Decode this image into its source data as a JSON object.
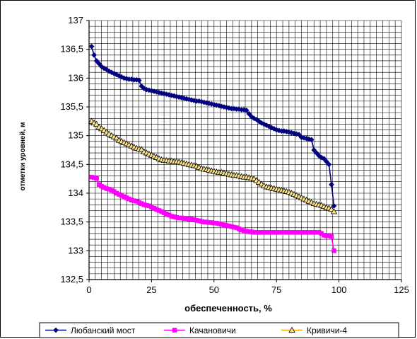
{
  "chart_data": {
    "type": "line",
    "title": "",
    "xlabel": "обеспеченность, %",
    "ylabel": "отметки уровней, м",
    "xlim": [
      0,
      125
    ],
    "ylim": [
      132.5,
      137
    ],
    "x_ticks": [
      "0",
      "25",
      "50",
      "75",
      "100",
      "125"
    ],
    "y_ticks": [
      "132,5",
      "133",
      "133,5",
      "134",
      "134,5",
      "135",
      "135,5",
      "136",
      "136,5",
      "137"
    ],
    "grid": true,
    "legend_position": "bottom",
    "series": [
      {
        "name": "Любанский мост",
        "color": "#000080",
        "marker": "diamond",
        "x": [
          1,
          2,
          3,
          4,
          5,
          6,
          7,
          8,
          9,
          10,
          11,
          12,
          13,
          14,
          15,
          16,
          17,
          18,
          19,
          20,
          21,
          22,
          23,
          24,
          25,
          26,
          27,
          28,
          29,
          30,
          31,
          32,
          33,
          34,
          35,
          36,
          37,
          38,
          39,
          40,
          41,
          42,
          43,
          44,
          45,
          46,
          47,
          48,
          49,
          50,
          51,
          52,
          53,
          54,
          55,
          56,
          57,
          58,
          59,
          60,
          61,
          62,
          63,
          64,
          65,
          66,
          67,
          68,
          69,
          70,
          71,
          72,
          73,
          74,
          75,
          76,
          77,
          78,
          79,
          80,
          81,
          82,
          83,
          84,
          85,
          86,
          87,
          88,
          89,
          90,
          91,
          92,
          93,
          94,
          95,
          96,
          97,
          98
        ],
        "y": [
          136.55,
          136.4,
          136.3,
          136.25,
          136.2,
          136.17,
          136.15,
          136.12,
          136.1,
          136.08,
          136.06,
          136.04,
          136.02,
          136,
          135.99,
          135.98,
          135.98,
          135.97,
          135.97,
          135.96,
          135.86,
          135.82,
          135.8,
          135.79,
          135.78,
          135.77,
          135.76,
          135.75,
          135.74,
          135.73,
          135.72,
          135.71,
          135.7,
          135.69,
          135.68,
          135.67,
          135.66,
          135.65,
          135.64,
          135.63,
          135.62,
          135.61,
          135.6,
          135.6,
          135.59,
          135.58,
          135.57,
          135.56,
          135.55,
          135.54,
          135.53,
          135.52,
          135.51,
          135.5,
          135.49,
          135.48,
          135.47,
          135.47,
          135.46,
          135.46,
          135.45,
          135.45,
          135.44,
          135.38,
          135.33,
          135.3,
          135.28,
          135.25,
          135.22,
          135.2,
          135.18,
          135.16,
          135.14,
          135.12,
          135.1,
          135.09,
          135.08,
          135.08,
          135.07,
          135.06,
          135.05,
          135.04,
          135.03,
          135.02,
          134.97,
          134.96,
          134.95,
          134.94,
          134.93,
          134.75,
          134.7,
          134.65,
          134.62,
          134.6,
          134.55,
          134.5,
          134.15,
          133.78
        ]
      },
      {
        "name": "Качановичи",
        "color": "#FF00FF",
        "marker": "square",
        "x": [
          1,
          2,
          3,
          4,
          5,
          6,
          7,
          8,
          9,
          10,
          11,
          12,
          13,
          14,
          15,
          16,
          17,
          18,
          19,
          20,
          21,
          22,
          23,
          24,
          25,
          26,
          27,
          28,
          29,
          30,
          31,
          32,
          33,
          34,
          35,
          36,
          37,
          38,
          39,
          40,
          41,
          42,
          43,
          44,
          45,
          46,
          47,
          48,
          49,
          50,
          51,
          52,
          53,
          54,
          55,
          56,
          57,
          58,
          59,
          60,
          61,
          62,
          63,
          64,
          65,
          66,
          67,
          68,
          69,
          70,
          71,
          72,
          73,
          74,
          75,
          76,
          77,
          78,
          79,
          80,
          81,
          82,
          83,
          84,
          85,
          86,
          87,
          88,
          89,
          90,
          91,
          92,
          93,
          94,
          95,
          96,
          97,
          98
        ],
        "y": [
          134.28,
          134.27,
          134.26,
          134.15,
          134.12,
          134.1,
          134.08,
          134.07,
          134.05,
          134.03,
          134,
          133.98,
          133.96,
          133.94,
          133.92,
          133.9,
          133.88,
          133.87,
          133.86,
          133.84,
          133.82,
          133.8,
          133.79,
          133.78,
          133.76,
          133.74,
          133.72,
          133.7,
          133.68,
          133.66,
          133.64,
          133.62,
          133.6,
          133.59,
          133.58,
          133.57,
          133.57,
          133.56,
          133.56,
          133.55,
          133.55,
          133.54,
          133.53,
          133.52,
          133.51,
          133.5,
          133.5,
          133.49,
          133.49,
          133.48,
          133.48,
          133.47,
          133.46,
          133.45,
          133.44,
          133.43,
          133.42,
          133.41,
          133.4,
          133.38,
          133.36,
          133.35,
          133.34,
          133.33,
          133.33,
          133.32,
          133.32,
          133.32,
          133.32,
          133.32,
          133.32,
          133.32,
          133.32,
          133.32,
          133.32,
          133.32,
          133.32,
          133.32,
          133.32,
          133.32,
          133.32,
          133.32,
          133.32,
          133.32,
          133.32,
          133.32,
          133.32,
          133.32,
          133.32,
          133.32,
          133.32,
          133.32,
          133.3,
          133.27,
          133.26,
          133.26,
          133.25,
          133
        ]
      },
      {
        "name": "Кривичи-4",
        "color": "#FFA500",
        "marker": "triangle",
        "x": [
          1,
          2,
          3,
          4,
          5,
          6,
          7,
          8,
          9,
          10,
          11,
          12,
          13,
          14,
          15,
          16,
          17,
          18,
          19,
          20,
          21,
          22,
          23,
          24,
          25,
          26,
          27,
          28,
          29,
          30,
          31,
          32,
          33,
          34,
          35,
          36,
          37,
          38,
          39,
          40,
          41,
          42,
          43,
          44,
          45,
          46,
          47,
          48,
          49,
          50,
          51,
          52,
          53,
          54,
          55,
          56,
          57,
          58,
          59,
          60,
          61,
          62,
          63,
          64,
          65,
          66,
          67,
          68,
          69,
          70,
          71,
          72,
          73,
          74,
          75,
          76,
          77,
          78,
          79,
          80,
          81,
          82,
          83,
          84,
          85,
          86,
          87,
          88,
          89,
          90,
          91,
          92,
          93,
          94,
          95,
          96,
          97,
          98
        ],
        "y": [
          135.25,
          135.22,
          135.2,
          135.15,
          135.12,
          135.09,
          135.06,
          135.03,
          135,
          134.98,
          134.96,
          134.92,
          134.9,
          134.88,
          134.86,
          134.84,
          134.82,
          134.8,
          134.78,
          134.77,
          134.76,
          134.72,
          134.7,
          134.68,
          134.66,
          134.64,
          134.62,
          134.6,
          134.58,
          134.57,
          134.57,
          134.56,
          134.56,
          134.55,
          134.55,
          134.54,
          134.53,
          134.52,
          134.51,
          134.5,
          134.49,
          134.48,
          134.47,
          134.45,
          134.43,
          134.42,
          134.41,
          134.4,
          134.39,
          134.38,
          134.37,
          134.36,
          134.36,
          134.35,
          134.34,
          134.33,
          134.32,
          134.31,
          134.31,
          134.3,
          134.29,
          134.28,
          134.28,
          134.27,
          134.26,
          134.25,
          134.22,
          134.19,
          134.16,
          134.13,
          134.11,
          134.1,
          134.09,
          134.08,
          134.07,
          134.06,
          134.05,
          134.04,
          134.03,
          134.02,
          134,
          133.98,
          133.96,
          133.94,
          133.92,
          133.9,
          133.88,
          133.86,
          133.84,
          133.82,
          133.81,
          133.8,
          133.79,
          133.77,
          133.75,
          133.74,
          133.72,
          133.68
        ]
      }
    ]
  }
}
